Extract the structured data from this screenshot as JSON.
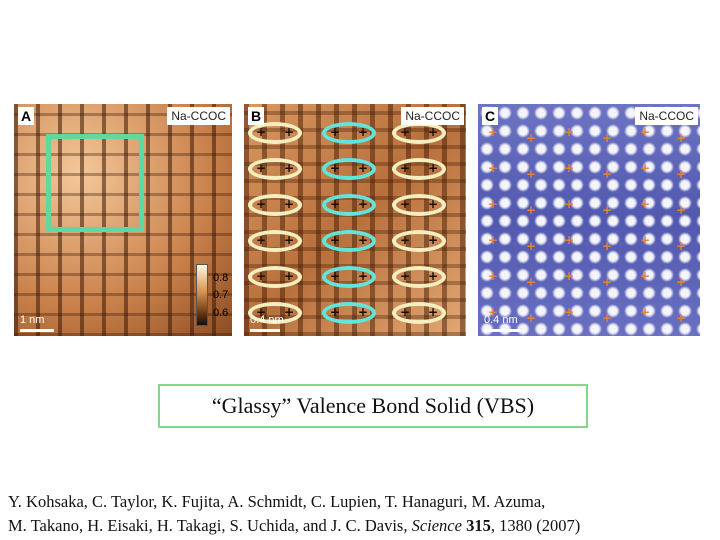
{
  "panels": [
    {
      "label": "A",
      "tag": "Na-CCOC",
      "scale_label": "1 nm"
    },
    {
      "label": "B",
      "tag": "Na-CCOC",
      "scale_label": "0.4 nm"
    },
    {
      "label": "C",
      "tag": "Na-CCOC",
      "scale_label": "0.4 nm"
    }
  ],
  "colorbar_ticks": [
    "0.8",
    "0.7",
    "0.6"
  ],
  "plus_symbol": "+",
  "caption": "“Glassy” Valence Bond Solid (VBS)",
  "citation": {
    "line1": "Y. Kohsaka, C. Taylor, K. Fujita, A. Schmidt, C. Lupien, T. Hanaguri, M. Azuma,",
    "line2_pre": "M. Takano, H. Eisaki, H. Takagi, S. Uchida, and J. C. Davis, ",
    "journal": "Science",
    "volume": "315",
    "pages_year": ", 1380 (2007)"
  },
  "colors": {
    "box_green": "#5fd9a3",
    "ellipse_cream": "#f5eec0",
    "ellipse_teal": "#62e3db",
    "caption_border": "#86d58a",
    "plus_orange": "#e6813a"
  }
}
